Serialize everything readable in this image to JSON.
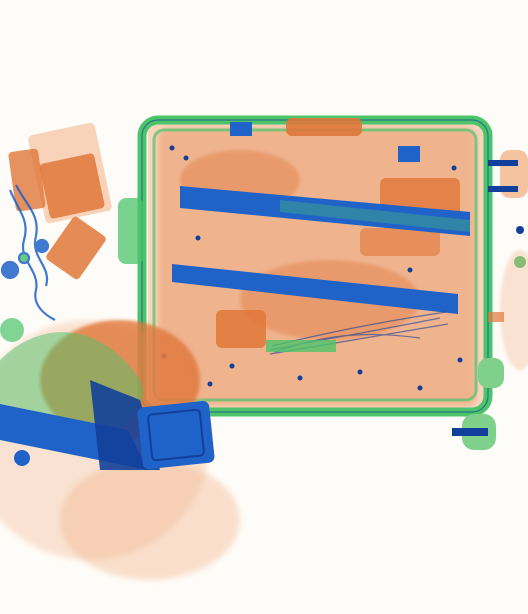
{
  "image": {
    "kind": "x-ray baggage scan",
    "palette": {
      "background": "#fefcf8",
      "organic": "#e0773a",
      "organic_light": "#f2b48a",
      "mixed": "#4cc46a",
      "inorganic": "#1f63c9",
      "dense": "#123f9a",
      "wheel": "#7fd08a"
    }
  }
}
